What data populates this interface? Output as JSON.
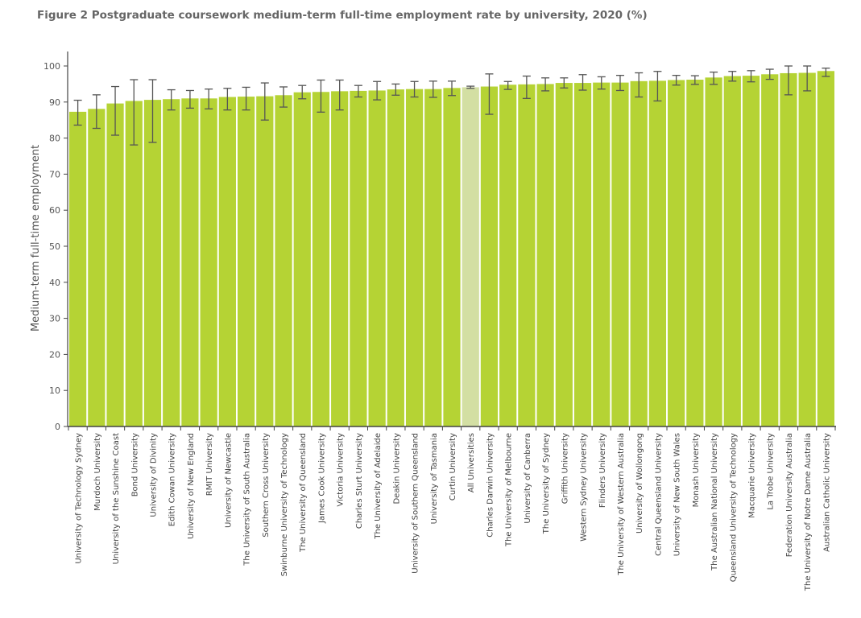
{
  "colors": {
    "bar": "#b5d334",
    "highlight_bar": "#d3dfa3",
    "error_bar": "#555555",
    "axis": "#444444"
  },
  "chart_data": {
    "type": "bar",
    "title": "Figure 2 Postgraduate coursework medium-term full-time employment rate by university, 2020 (%)",
    "xlabel": "",
    "ylabel": "Medium-term full-time employment",
    "ylim": [
      0,
      100
    ],
    "yticks": [
      "0",
      "10",
      "20",
      "30",
      "40",
      "50",
      "60",
      "70",
      "80",
      "90",
      "100"
    ],
    "grid": false,
    "highlight": "All Universities",
    "categories": [
      "University of Technology Sydney",
      "Murdoch University",
      "University of the Sunshine Coast",
      "Bond University",
      "University of Divinity",
      "Edith Cowan University",
      "University of New England",
      "RMIT University",
      "University of Newcastle",
      "The University of South Australia",
      "Southern Cross University",
      "Swinburne University of Technology",
      "The University of Queensland",
      "James Cook University",
      "Victoria University",
      "Charles Sturt University",
      "The University of Adelaide",
      "Deakin University",
      "University of Southern Queensland",
      "University of Tasmania",
      "Curtin University",
      "All Universities",
      "Charles Darwin University",
      "The University of Melbourne",
      "University of Canberra",
      "The University of Sydney",
      "Griffith University",
      "Western Sydney University",
      "Flinders University",
      "The University of Western Australia",
      "University of Wollongong",
      "Central Queensland University",
      "University of New South Wales",
      "Monash University",
      "The Australian National University",
      "Queensland University of Technology",
      "Macquarie University",
      "La Trobe University",
      "Federation University Australia",
      "The University of Notre Dame Australia",
      "Australian Catholic University"
    ],
    "values": [
      87.3,
      88.1,
      89.6,
      90.3,
      90.6,
      90.8,
      91.0,
      91.0,
      91.4,
      91.5,
      91.6,
      91.9,
      92.7,
      92.8,
      93.0,
      93.1,
      93.2,
      93.5,
      93.6,
      93.6,
      93.9,
      94.1,
      94.3,
      94.8,
      94.9,
      95.0,
      95.3,
      95.3,
      95.4,
      95.4,
      95.8,
      95.9,
      96.1,
      96.2,
      96.8,
      97.2,
      97.3,
      97.7,
      98.0,
      98.1,
      98.6
    ],
    "error_low": [
      83.6,
      82.7,
      80.8,
      78.1,
      78.8,
      87.8,
      88.3,
      88.1,
      87.8,
      87.8,
      85.0,
      88.6,
      90.9,
      87.2,
      87.8,
      91.4,
      90.6,
      91.9,
      91.4,
      91.3,
      91.8,
      93.8,
      86.6,
      93.5,
      91.0,
      93.1,
      93.9,
      93.3,
      93.6,
      93.2,
      91.4,
      90.3,
      94.7,
      94.9,
      94.9,
      95.8,
      95.6,
      96.3,
      92.0,
      93.1,
      97.1
    ],
    "error_high": [
      90.5,
      92.0,
      94.3,
      96.2,
      96.2,
      93.4,
      93.2,
      93.6,
      93.8,
      94.1,
      95.3,
      94.2,
      94.6,
      96.1,
      96.1,
      94.6,
      95.7,
      95.0,
      95.7,
      95.8,
      95.8,
      94.4,
      97.8,
      95.7,
      97.2,
      96.7,
      96.7,
      97.6,
      97.0,
      97.4,
      98.1,
      98.5,
      97.4,
      97.3,
      98.3,
      98.5,
      98.7,
      99.1,
      100.0,
      100.0,
      99.4
    ]
  }
}
